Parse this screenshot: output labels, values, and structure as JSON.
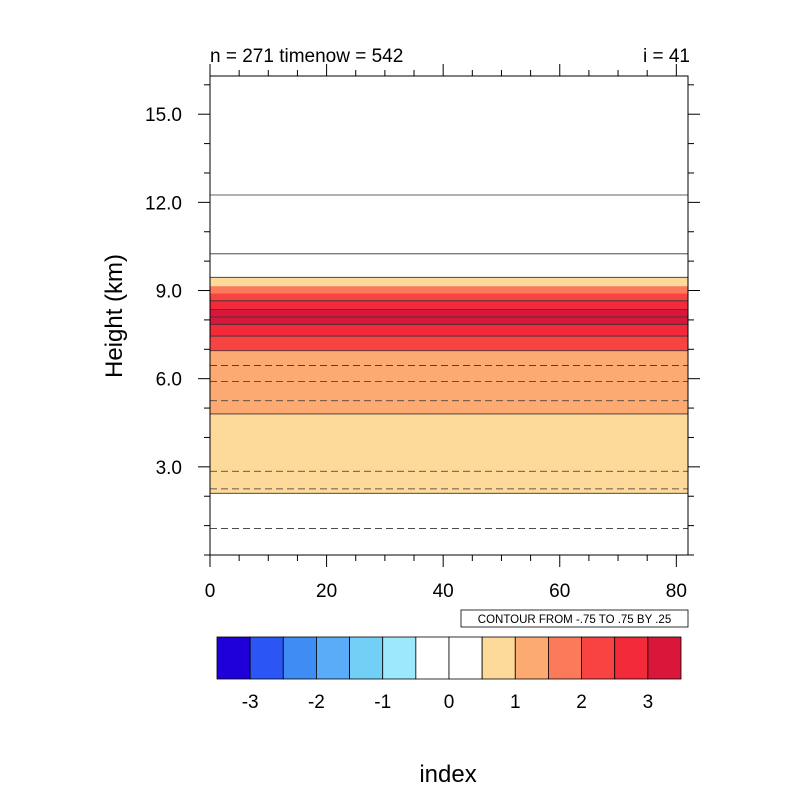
{
  "chart_data": {
    "type": "heatmap",
    "title_left": "n = 271 timenow = 542",
    "title_right": "i = 41",
    "xlabel": "index",
    "ylabel": "Height (km)",
    "xlim": [
      0,
      82
    ],
    "ylim": [
      0,
      16.3
    ],
    "xticks": [
      "0",
      "20",
      "40",
      "60",
      "80"
    ],
    "xtick_values": [
      0,
      20,
      40,
      60,
      80
    ],
    "yticks": [
      "3.0",
      "6.0",
      "9.0",
      "12.0",
      "15.0"
    ],
    "ytick_values": [
      3,
      6,
      9,
      12,
      15
    ],
    "contour_info": "CONTOUR FROM -.75 TO .75 BY .25",
    "bands": [
      {
        "y0": 0.0,
        "y1": 2.1,
        "level": 0
      },
      {
        "y0": 2.1,
        "y1": 4.8,
        "level": 1
      },
      {
        "y0": 4.8,
        "y1": 6.95,
        "level": 2
      },
      {
        "y0": 6.95,
        "y1": 7.45,
        "level": 4
      },
      {
        "y0": 7.45,
        "y1": 7.85,
        "level": 5
      },
      {
        "y0": 7.85,
        "y1": 8.35,
        "level": 6
      },
      {
        "y0": 8.35,
        "y1": 8.65,
        "level": 5
      },
      {
        "y0": 8.65,
        "y1": 8.9,
        "level": 4
      },
      {
        "y0": 8.9,
        "y1": 9.15,
        "level": 3
      },
      {
        "y0": 9.15,
        "y1": 9.45,
        "level": 1
      },
      {
        "y0": 9.45,
        "y1": 16.3,
        "level": 0
      }
    ],
    "solid_contours": [
      2.1,
      4.8,
      6.95,
      7.45,
      7.85,
      8.1,
      8.35,
      8.65,
      9.45,
      10.25,
      12.25
    ],
    "dashed_contours": [
      0.9,
      2.25,
      2.85,
      5.25,
      5.9,
      6.45
    ],
    "colorbar": {
      "colors": [
        "#2000d8",
        "#2b55f5",
        "#3f8cf5",
        "#5aabf8",
        "#72d0f7",
        "#9de8fb",
        "#ffffff",
        "#ffffff",
        "#fdd99a",
        "#fcaa71",
        "#fa7a5a",
        "#f94343",
        "#f22a3a",
        "#d8173a"
      ],
      "labels": [
        "-3",
        "-2",
        "-1",
        "0",
        "1",
        "2",
        "3"
      ],
      "label_positions": [
        1,
        3,
        5,
        7,
        9,
        11,
        13
      ]
    },
    "level_colors": {
      "0": "#ffffff",
      "1": "#fdd99a",
      "2": "#fcaa71",
      "3": "#fa7a5a",
      "4": "#f94343",
      "5": "#f22a3a",
      "6": "#d8173a"
    }
  }
}
